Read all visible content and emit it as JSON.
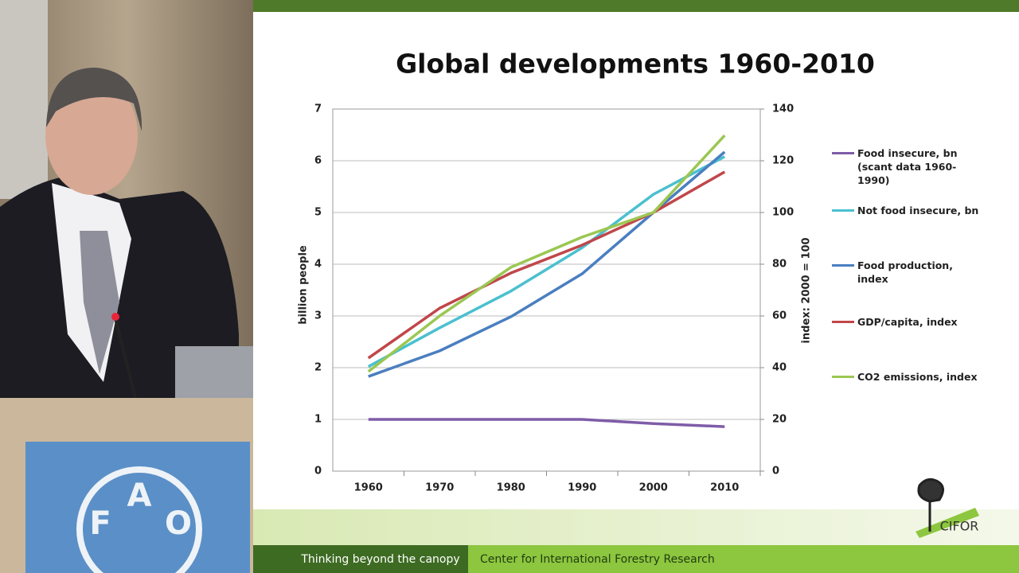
{
  "chart_data": {
    "type": "line",
    "title": "Global developments 1960-2010",
    "categories": [
      "1960",
      "1970",
      "1980",
      "1990",
      "2000",
      "2010"
    ],
    "y_label": "billion people",
    "y2_label": "index: 2000 = 100",
    "ylim": [
      0,
      7
    ],
    "yticks": [
      0,
      1,
      2,
      3,
      4,
      5,
      6,
      7
    ],
    "y2lim": [
      0,
      140
    ],
    "y2ticks": [
      0,
      20,
      40,
      60,
      80,
      100,
      120,
      140
    ],
    "grid": true,
    "legend": "right",
    "series": [
      {
        "name": "Food insecure, bn (scant data 1960-1990)",
        "color": "#7f5ca8",
        "values": [
          1.0,
          1.0,
          1.0,
          1.0,
          0.92,
          0.86
        ]
      },
      {
        "name": "Not food insecure, bn",
        "color": "#4bc0cf",
        "values": [
          2.02,
          2.77,
          3.48,
          4.32,
          5.35,
          6.08
        ]
      },
      {
        "name": "Food production, index",
        "color": "#4a7fc0",
        "axis": "y2",
        "values": [
          36.6,
          46.5,
          59.7,
          76.3,
          100,
          123.4
        ]
      },
      {
        "name": "GDP/capita, index",
        "color": "#c0464a",
        "axis": "y2",
        "values": [
          43.7,
          63,
          76.6,
          87.4,
          100,
          115.7
        ]
      },
      {
        "name": "CO2 emissions, index",
        "color": "#9bc753",
        "axis": "y2",
        "values": [
          38.5,
          60,
          78.8,
          90.5,
          100,
          129.8
        ]
      }
    ]
  },
  "slide": {
    "footer_left": "Thinking beyond the canopy",
    "footer_right": "Center for International Forestry Research",
    "logo": "CIFOR"
  },
  "podium_logo": {
    "letters": [
      "F",
      "A",
      "O"
    ]
  }
}
